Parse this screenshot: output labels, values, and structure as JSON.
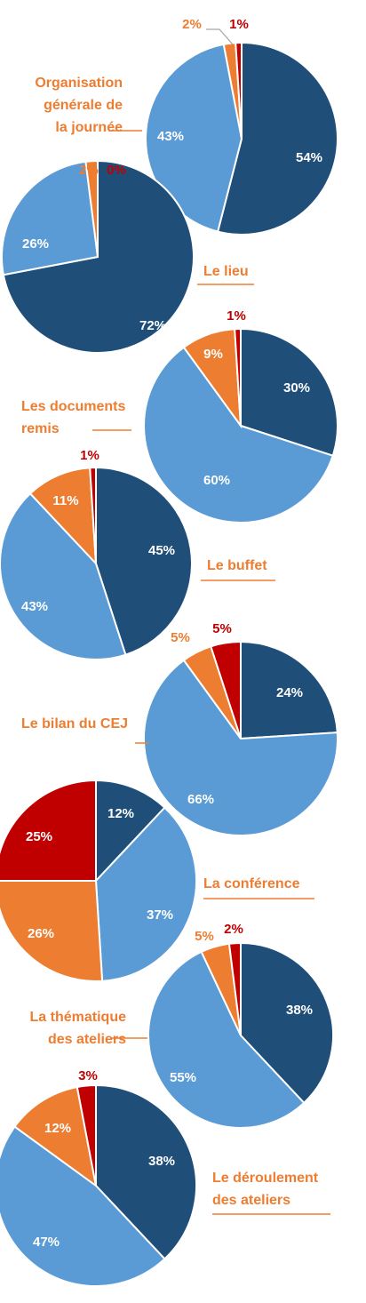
{
  "colors": {
    "tres_satisfait": "#1f4e79",
    "satisfait": "#5b9bd5",
    "peu_satisfait": "#ed7d31",
    "pas_satisfait": "#c00000",
    "title": "#ed7d31"
  },
  "chart_data": [
    {
      "type": "pie",
      "title": "Organisation générale de la journée",
      "title_lines": [
        "Organisation",
        "générale de",
        "la journée"
      ],
      "values": [
        54,
        43,
        2,
        1
      ],
      "labels": [
        "54%",
        "43%",
        "2%",
        "1%"
      ]
    },
    {
      "type": "pie",
      "title": "Le lieu",
      "title_lines": [
        "Le lieu"
      ],
      "values": [
        72,
        26,
        2,
        0
      ],
      "labels": [
        "72%",
        "26%",
        "2%",
        "0%"
      ]
    },
    {
      "type": "pie",
      "title": "Les documents remis",
      "title_lines": [
        "Les documents",
        "remis"
      ],
      "values": [
        30,
        60,
        9,
        1
      ],
      "labels": [
        "30%",
        "60%",
        "9%",
        "1%"
      ]
    },
    {
      "type": "pie",
      "title": "Le buffet",
      "title_lines": [
        "Le buffet"
      ],
      "values": [
        45,
        43,
        11,
        1
      ],
      "labels": [
        "45%",
        "43%",
        "11%",
        "1%"
      ]
    },
    {
      "type": "pie",
      "title": "Le bilan du CEJ",
      "title_lines": [
        "Le bilan du CEJ"
      ],
      "values": [
        24,
        66,
        5,
        5
      ],
      "labels": [
        "24%",
        "66%",
        "5%",
        "5%"
      ]
    },
    {
      "type": "pie",
      "title": "La conférence",
      "title_lines": [
        "La conférence"
      ],
      "values": [
        12,
        37,
        26,
        25
      ],
      "labels": [
        "12%",
        "37%",
        "26%",
        "25%"
      ]
    },
    {
      "type": "pie",
      "title": "La thématique des ateliers",
      "title_lines": [
        "La thématique",
        "des ateliers"
      ],
      "values": [
        38,
        55,
        5,
        2
      ],
      "labels": [
        "38%",
        "55%",
        "5%",
        "2%"
      ]
    },
    {
      "type": "pie",
      "title": "Le déroulement des ateliers",
      "title_lines": [
        "Le déroulement",
        "des ateliers"
      ],
      "values": [
        38,
        47,
        12,
        3
      ],
      "labels": [
        "38%",
        "47%",
        "12%",
        "3%"
      ]
    }
  ]
}
